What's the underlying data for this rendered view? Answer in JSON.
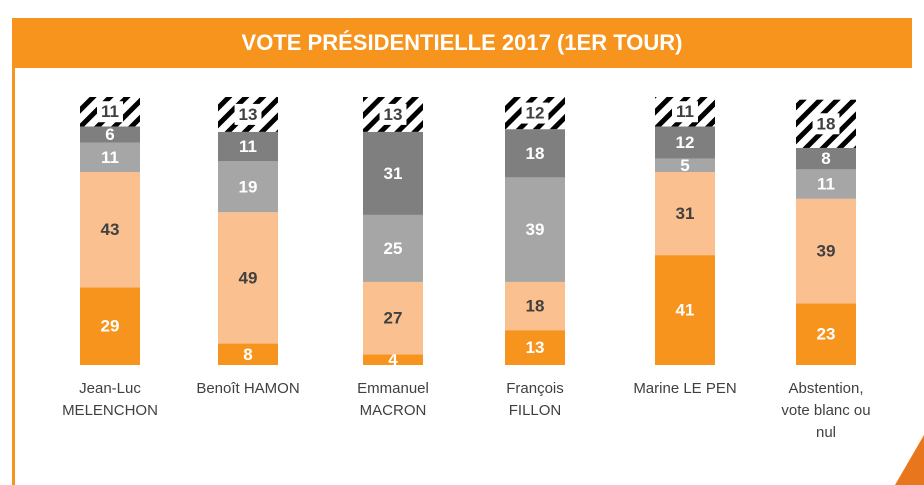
{
  "chart_data": {
    "type": "stacked_bar",
    "title": "VOTE PRÉSIDENTIELLE 2017 (1ER TOUR)",
    "categories": [
      "Jean-Luc\nMELENCHON",
      "Benoît HAMON",
      "Emmanuel\nMACRON",
      "François\nFILLON",
      "Marine LE PEN",
      "Abstention,\nvote blanc ou\nnul"
    ],
    "ylim": [
      0,
      100
    ],
    "series": [
      {
        "color": "#f7941d",
        "label_color": "#ffffff",
        "values": [
          29,
          8,
          4,
          13,
          41,
          23
        ]
      },
      {
        "color": "#fbc08f",
        "label_color": "#404040",
        "values": [
          43,
          49,
          27,
          18,
          31,
          39
        ]
      },
      {
        "color": "#a6a6a6",
        "label_color": "#ffffff",
        "values": [
          11,
          19,
          25,
          39,
          5,
          11
        ]
      },
      {
        "color": "#7f7f7f",
        "label_color": "#ffffff",
        "values": [
          6,
          11,
          31,
          18,
          12,
          8
        ]
      },
      {
        "color": "hatch",
        "label_color": "#404040",
        "values": [
          11,
          13,
          13,
          12,
          11,
          18
        ]
      }
    ]
  }
}
